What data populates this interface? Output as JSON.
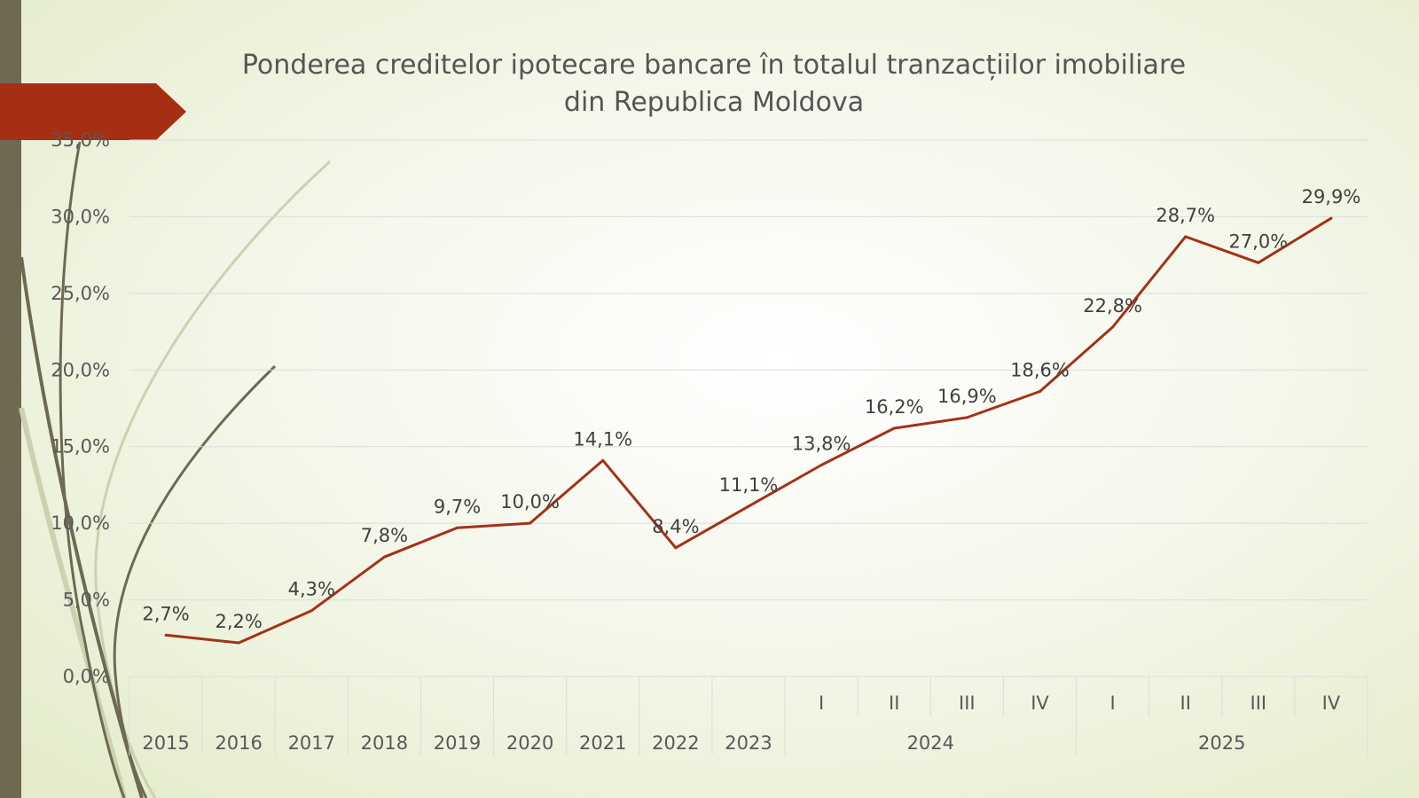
{
  "colors": {
    "series_line": "#a23218",
    "accent_bar": "#a52e13",
    "side_bar": "#6e6a52",
    "gridline": "#dcdcdc",
    "decor_dark": "#6e6a52",
    "decor_light": "#cdd1b0"
  },
  "chart_data": {
    "type": "line",
    "title": "Ponderea creditelor ipotecare bancare în totalul tranzacțiilor imobiliare din Republica Moldova",
    "title_lines": [
      "Ponderea creditelor ipotecare bancare în totalul tranzacțiilor imobiliare",
      "din Republica Moldova"
    ],
    "ylim": [
      0,
      35
    ],
    "y_ticks": [
      "0,0%",
      "5,0%",
      "10,0%",
      "15,0%",
      "20,0%",
      "25,0%",
      "30,0%",
      "35,0%"
    ],
    "categories": [
      "2015",
      "2016",
      "2017",
      "2018",
      "2019",
      "2020",
      "2021",
      "2022",
      "2023",
      "I",
      "II",
      "III",
      "IV",
      "I",
      "II",
      "III",
      "IV"
    ],
    "category_groups": [
      {
        "label": "2024",
        "members": [
          "I",
          "II",
          "III",
          "IV"
        ]
      },
      {
        "label": "2025",
        "members": [
          "I",
          "II",
          "III",
          "IV"
        ]
      }
    ],
    "series": [
      {
        "values": [
          2.7,
          2.2,
          4.3,
          7.8,
          9.7,
          10.0,
          14.1,
          8.4,
          11.1,
          13.8,
          16.2,
          16.9,
          18.6,
          22.8,
          28.7,
          27.0,
          29.9
        ],
        "labels": [
          "2,7%",
          "2,2%",
          "4,3%",
          "7,8%",
          "9,7%",
          "10,0%",
          "14,1%",
          "8,4%",
          "11,1%",
          "13,8%",
          "16,2%",
          "16,9%",
          "18,6%",
          "22,8%",
          "28,7%",
          "27,0%",
          "29,9%"
        ]
      }
    ],
    "grid": true,
    "legend": "none"
  }
}
